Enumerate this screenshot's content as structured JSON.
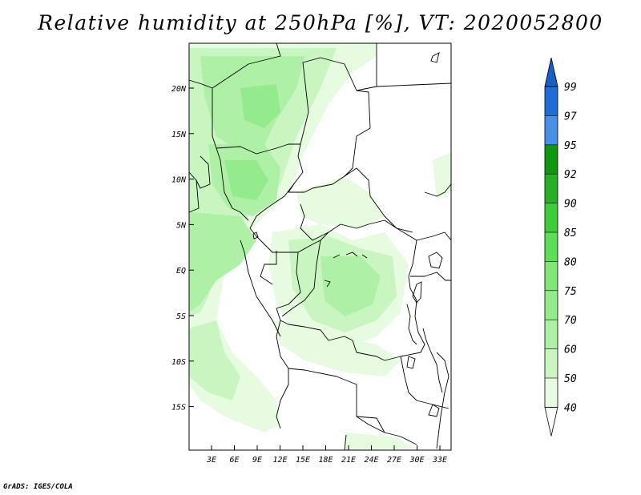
{
  "title": "Relative humidity at 250hPa [%], VT: 2020052800",
  "credit": "GrADS: IGES/COLA",
  "map": {
    "lat_labels": [
      "20N",
      "15N",
      "10N",
      "5N",
      "EQ",
      "5S",
      "10S",
      "15S"
    ],
    "lon_labels": [
      "3E",
      "6E",
      "9E",
      "12E",
      "15E",
      "18E",
      "21E",
      "24E",
      "27E",
      "30E",
      "33E"
    ]
  },
  "colorbar": {
    "levels": [
      "40",
      "50",
      "60",
      "70",
      "75",
      "80",
      "85",
      "90",
      "92",
      "95",
      "97",
      "99"
    ],
    "colors": [
      "#ffffff",
      "#e6fbe0",
      "#c8f5c0",
      "#aef0a6",
      "#94eb8c",
      "#7fe676",
      "#5ede56",
      "#3fcc3a",
      "#27b027",
      "#119611",
      "#4a90e6",
      "#1f6dd6",
      "#1560c8"
    ]
  }
}
